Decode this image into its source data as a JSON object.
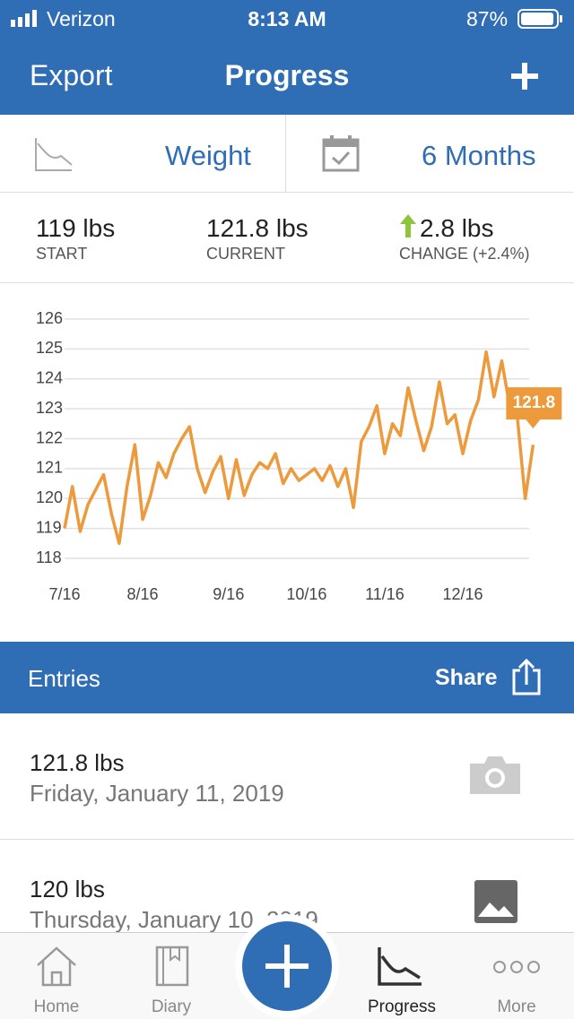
{
  "status_bar": {
    "carrier": "Verizon",
    "time": "8:13 AM",
    "battery": "87%"
  },
  "nav": {
    "left": "Export",
    "title": "Progress"
  },
  "selector": {
    "metric": "Weight",
    "range": "6 Months"
  },
  "stats": [
    {
      "value": "119 lbs",
      "label": "START"
    },
    {
      "value": "121.8 lbs",
      "label": "CURRENT"
    },
    {
      "value": "2.8 lbs",
      "label": "CHANGE (+2.4%)"
    }
  ],
  "chart_data": {
    "type": "line",
    "color": "#ec9a3c",
    "grid": true,
    "categories": [
      "7/16",
      null,
      null,
      null,
      null,
      null,
      null,
      null,
      null,
      null,
      "8/16",
      null,
      null,
      null,
      null,
      null,
      null,
      null,
      null,
      null,
      null,
      "9/16",
      null,
      null,
      null,
      null,
      null,
      null,
      null,
      null,
      null,
      "10/16",
      null,
      null,
      null,
      null,
      null,
      null,
      null,
      null,
      null,
      "11/16",
      null,
      null,
      null,
      null,
      null,
      null,
      null,
      null,
      null,
      "12/16",
      null,
      null,
      null,
      null,
      null,
      null,
      null,
      null,
      null
    ],
    "values": [
      119,
      120.4,
      118.9,
      119.8,
      120.3,
      120.8,
      119.5,
      118.5,
      120.4,
      121.8,
      119.3,
      120.1,
      121.2,
      120.7,
      121.5,
      122.0,
      122.4,
      121.0,
      120.2,
      120.9,
      121.4,
      120.0,
      121.3,
      120.1,
      120.8,
      121.2,
      121.0,
      121.5,
      120.5,
      121.0,
      120.6,
      120.8,
      121.0,
      120.6,
      121.1,
      120.4,
      121.0,
      119.7,
      121.9,
      122.4,
      123.1,
      121.5,
      122.5,
      122.1,
      123.7,
      122.6,
      121.6,
      122.4,
      123.9,
      122.5,
      122.8,
      121.5,
      122.6,
      123.3,
      124.9,
      123.4,
      124.6,
      123.1,
      122.7,
      120.0,
      121.8
    ],
    "ylim": [
      118,
      126
    ],
    "yticks": [
      118,
      119,
      120,
      121,
      122,
      123,
      124,
      125,
      126
    ]
  },
  "entries_header": {
    "title": "Entries",
    "action": "Share"
  },
  "entries": [
    {
      "weight": "121.8 lbs",
      "date": "Friday, January 11, 2019"
    },
    {
      "weight": "120 lbs",
      "date": "Thursday, January 10, 2019"
    }
  ],
  "tabs": [
    "Home",
    "Diary",
    "Progress",
    "More"
  ]
}
